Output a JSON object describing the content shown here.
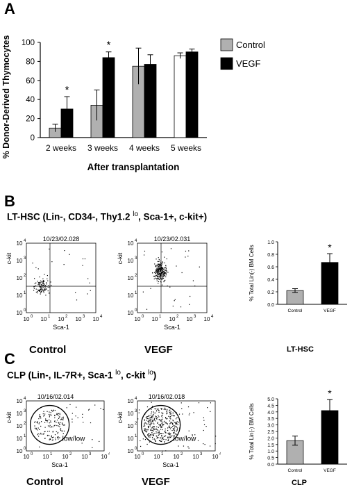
{
  "panels": {
    "A": {
      "letter": "A",
      "chart_data": {
        "type": "bar",
        "ylabel": "% Donor-Derived Thymocytes",
        "xlabel": "After transplantation",
        "categories": [
          "2 weeks",
          "3 weeks",
          "4 weeks",
          "5 weeks"
        ],
        "ylim": [
          0,
          100
        ],
        "yticks": [
          "0",
          "20",
          "40",
          "60",
          "80",
          "100"
        ],
        "series": [
          {
            "name": "Control",
            "color": "#b0b0b0",
            "values": [
              10,
              34,
              75,
              86
            ],
            "errors": [
              4,
              16,
              19,
              3
            ]
          },
          {
            "name": "VEGF",
            "color": "#000000",
            "values": [
              30,
              84,
              77,
              90
            ],
            "errors": [
              13,
              6,
              10,
              3
            ]
          }
        ],
        "annotations": [
          "*",
          "*",
          "",
          ""
        ],
        "legend_position": "top-right"
      }
    },
    "B": {
      "letter": "B",
      "title_main": "LT-HSC  (Lin-, CD34-, Thy1.2 ",
      "title_sup": "lo",
      "title_end": ", Sca-1+, c-kit+)",
      "flows": [
        {
          "sample_id": "10/23/02.028",
          "label": "Control",
          "xaxis": "Sca-1",
          "yaxis": "c-kit"
        },
        {
          "sample_id": "10/23/02.031",
          "label": "VEGF",
          "xaxis": "Sca-1",
          "yaxis": "c-kit"
        }
      ],
      "chart_data": {
        "type": "bar",
        "ylabel": "% Total Lin(-) BM Cells",
        "categories": [
          "Control",
          "VEGF"
        ],
        "values": [
          0.22,
          0.67
        ],
        "errors": [
          0.03,
          0.14
        ],
        "colors": [
          "#b0b0b0",
          "#000000"
        ],
        "ylim": [
          0,
          1.0
        ],
        "yticks": [
          "0.0",
          "0.2",
          "0.4",
          "0.6",
          "0.8",
          "1.0"
        ],
        "annotation": "*",
        "caption": "LT-HSC"
      }
    },
    "C": {
      "letter": "C",
      "title_main": "CLP  (Lin-, IL-7R+, Sca-1 ",
      "title_sup": "lo",
      "title_mid": ", c-kit ",
      "title_sup2": "lo",
      "title_end": ")",
      "flows": [
        {
          "sample_id": "10/16/02.014",
          "label": "Control",
          "xaxis": "Sca-1",
          "yaxis": "c-kit",
          "gate_label": "low/low"
        },
        {
          "sample_id": "10/16/02.018",
          "label": "VEGF",
          "xaxis": "Sca-1",
          "yaxis": "c-kit",
          "gate_label": "low/low"
        }
      ],
      "chart_data": {
        "type": "bar",
        "ylabel": "% Total Lin(-) BM Cells",
        "categories": [
          "Control",
          "VEGF"
        ],
        "values": [
          1.8,
          4.1
        ],
        "errors": [
          0.35,
          0.85
        ],
        "colors": [
          "#b0b0b0",
          "#000000"
        ],
        "ylim": [
          0,
          5.0
        ],
        "yticks": [
          "0.0",
          "0.5",
          "1.0",
          "1.5",
          "2.0",
          "2.5",
          "3.0",
          "3.5",
          "4.0",
          "4.5",
          "5.0"
        ],
        "annotation": "*",
        "caption": "CLP"
      }
    }
  }
}
